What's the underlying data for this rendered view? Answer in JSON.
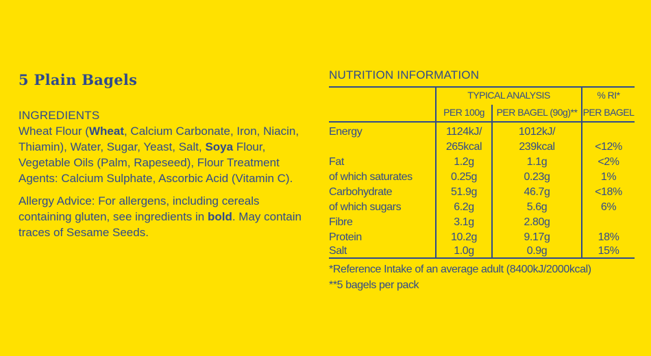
{
  "product": {
    "title": "5 Plain Bagels"
  },
  "ingredients": {
    "heading": "INGREDIENTS",
    "segments": [
      {
        "text": "Wheat Flour (",
        "bold": false
      },
      {
        "text": "Wheat",
        "bold": true
      },
      {
        "text": ", Calcium Carbonate, Iron, Niacin, Thiamin), Water, Sugar, Yeast, Salt, ",
        "bold": false
      },
      {
        "text": "Soya",
        "bold": true
      },
      {
        "text": " Flour, Vegetable Oils (Palm, Rapeseed), Flour Treatment Agents: Calcium Sulphate, Ascorbic Acid (Vitamin C).",
        "bold": false
      }
    ]
  },
  "allergy": {
    "segments": [
      {
        "text": "Allergy Advice: For allergens, including cereals containing gluten, see ingredients in ",
        "bold": false
      },
      {
        "text": "bold",
        "bold": true
      },
      {
        "text": ". May contain traces of Sesame Seeds.",
        "bold": false
      }
    ]
  },
  "nutrition": {
    "title": "NUTRITION INFORMATION",
    "header": {
      "typical_analysis": "TYPICAL ANALYSIS",
      "per_100g": "PER 100g",
      "per_bagel": "PER BAGEL (90g)**",
      "ri": "% RI*",
      "ri_per_bagel": "PER BAGEL"
    },
    "rows": [
      {
        "label": "Energy",
        "per_100g": "1124kJ/",
        "per_bagel": "1012kJ/",
        "ri": ""
      },
      {
        "label": "",
        "per_100g": "265kcal",
        "per_bagel": "239kcal",
        "ri": "<12%"
      },
      {
        "label": "Fat",
        "per_100g": "1.2g",
        "per_bagel": "1.1g",
        "ri": "<2%"
      },
      {
        "label": "of which saturates",
        "per_100g": "0.25g",
        "per_bagel": "0.23g",
        "ri": "1%"
      },
      {
        "label": "Carbohydrate",
        "per_100g": "51.9g",
        "per_bagel": "46.7g",
        "ri": "<18%"
      },
      {
        "label": "of which sugars",
        "per_100g": "6.2g",
        "per_bagel": "5.6g",
        "ri": "6%"
      },
      {
        "label": "Fibre",
        "per_100g": "3.1g",
        "per_bagel": "2.80g",
        "ri": ""
      },
      {
        "label": "Protein",
        "per_100g": "10.2g",
        "per_bagel": "9.17g",
        "ri": "18%"
      },
      {
        "label": "Salt",
        "per_100g": "1.0g",
        "per_bagel": "0.9g",
        "ri": "15%"
      }
    ],
    "footnote_ri": "*Reference Intake of an average adult (8400kJ/2000kcal)",
    "footnote_pack": "**5 bagels per pack"
  },
  "colors": {
    "background": "#ffe100",
    "text": "#2f4a8c"
  }
}
